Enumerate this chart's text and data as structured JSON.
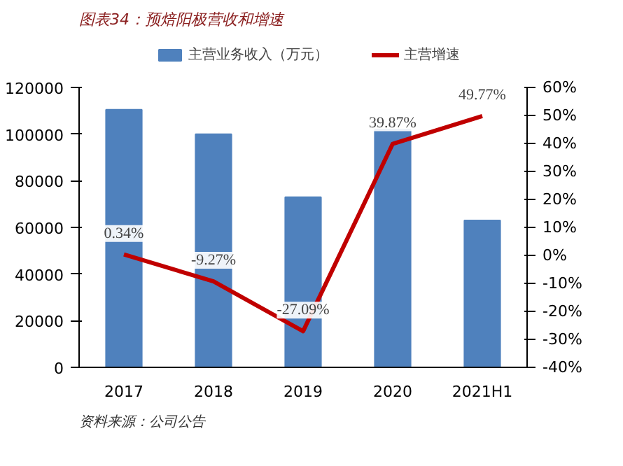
{
  "chart_data": {
    "type": "bar",
    "title": "图表34：预焙阳极营收和增速",
    "annotations": [
      "资料来源：公司公告"
    ],
    "categories": [
      "2017",
      "2018",
      "2019",
      "2020",
      "2021H1"
    ],
    "series": [
      {
        "name": "主营业务收入（万元）",
        "color": "#4f81bd",
        "values": [
          110500,
          100000,
          73000,
          102000,
          63000
        ]
      },
      {
        "name": "主营增速",
        "type": "line",
        "axis": "y2",
        "color": "#c00000",
        "values": [
          0.34,
          -9.27,
          -27.09,
          39.87,
          49.77
        ],
        "value_labels": [
          "0.34%",
          "-9.27%",
          "-27.09%",
          "39.87%",
          "49.77%"
        ]
      }
    ],
    "ylim": [
      0,
      120000
    ],
    "yticks": [
      0,
      20000,
      40000,
      60000,
      80000,
      100000,
      120000
    ],
    "y2lim": [
      -40,
      60
    ],
    "y2ticks": [
      {
        "value": -40,
        "label": "-40%"
      },
      {
        "value": -30,
        "label": "-30%"
      },
      {
        "value": -20,
        "label": "-20%"
      },
      {
        "value": -10,
        "label": "-10%"
      },
      {
        "value": 0,
        "label": "0%"
      },
      {
        "value": 10,
        "label": "10%"
      },
      {
        "value": 20,
        "label": "20%"
      },
      {
        "value": 30,
        "label": "30%"
      },
      {
        "value": 40,
        "label": "40%"
      },
      {
        "value": 50,
        "label": "50%"
      },
      {
        "value": 60,
        "label": "60%"
      }
    ],
    "legend": "top",
    "grid": false
  }
}
